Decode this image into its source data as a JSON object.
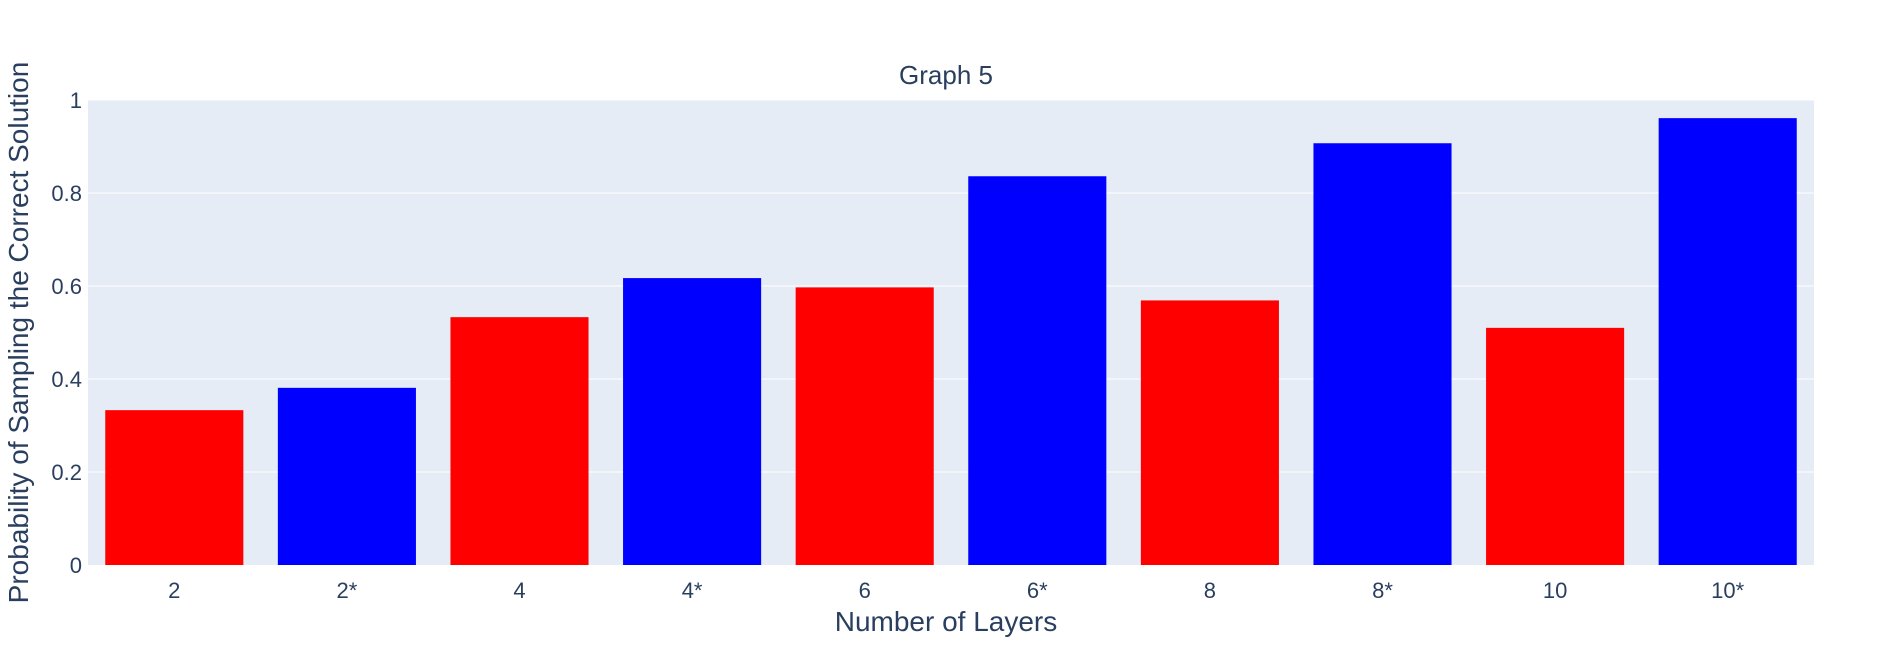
{
  "chart_data": {
    "type": "bar",
    "title": "Graph 5",
    "xlabel": "Number of Layers",
    "ylabel": "Probability of Sampling the Correct Solution",
    "categories": [
      "2",
      "2*",
      "4",
      "4*",
      "6",
      "6*",
      "8",
      "8*",
      "10",
      "10*"
    ],
    "values": [
      0.333,
      0.381,
      0.533,
      0.617,
      0.597,
      0.836,
      0.569,
      0.907,
      0.51,
      0.961
    ],
    "bar_colors": [
      "#ff0000",
      "#0000ff",
      "#ff0000",
      "#0000ff",
      "#ff0000",
      "#0000ff",
      "#ff0000",
      "#0000ff",
      "#ff0000",
      "#0000ff"
    ],
    "ylim": [
      0,
      1
    ],
    "yticks": [
      0,
      0.2,
      0.4,
      0.6,
      0.8,
      1
    ],
    "ytick_labels": [
      "0",
      "0.2",
      "0.4",
      "0.6",
      "0.8",
      "1"
    ],
    "grid": true,
    "legend": false,
    "plot_background": "#e5ecf6",
    "gridline_color": "#ffffff",
    "text_color": "#2a3f5f"
  }
}
